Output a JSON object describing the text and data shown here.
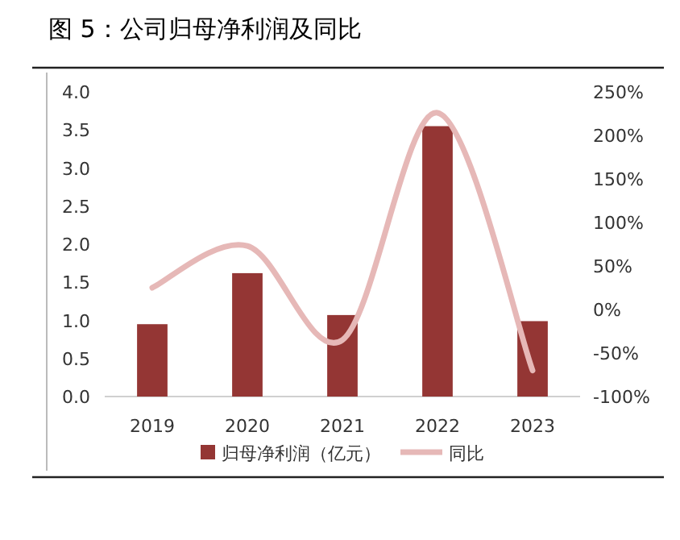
{
  "chart_data": {
    "type": "bar",
    "title": "图 5：公司归母净利润及同比",
    "categories": [
      "2019",
      "2020",
      "2021",
      "2022",
      "2023"
    ],
    "series": [
      {
        "name": "归母净利润（亿元）",
        "color": "#943634",
        "values": [
          0.95,
          1.62,
          1.07,
          3.55,
          0.99
        ]
      },
      {
        "name": "同比",
        "type": "line",
        "axis": "y2",
        "color": "#e6b8b7",
        "values": [
          25,
          73,
          -35,
          226,
          -70
        ]
      }
    ],
    "ylim": [
      0,
      4
    ],
    "yticks": [
      {
        "value": 0,
        "label": "0.0"
      },
      {
        "value": 0.5,
        "label": "0.5"
      },
      {
        "value": 1,
        "label": "1.0"
      },
      {
        "value": 1.5,
        "label": "1.5"
      },
      {
        "value": 2,
        "label": "2.0"
      },
      {
        "value": 2.5,
        "label": "2.5"
      },
      {
        "value": 3,
        "label": "3.0"
      },
      {
        "value": 3.5,
        "label": "3.5"
      },
      {
        "value": 4,
        "label": "4.0"
      }
    ],
    "y2lim": [
      -100,
      250
    ],
    "y2ticks": [
      {
        "value": -100,
        "label": "-100%"
      },
      {
        "value": -50,
        "label": "-50%"
      },
      {
        "value": 0,
        "label": "0%"
      },
      {
        "value": 50,
        "label": "50%"
      },
      {
        "value": 100,
        "label": "100%"
      },
      {
        "value": 150,
        "label": "150%"
      },
      {
        "value": 200,
        "label": "200%"
      },
      {
        "value": 250,
        "label": "250%"
      }
    ],
    "legend": "bottom",
    "grid": false
  }
}
